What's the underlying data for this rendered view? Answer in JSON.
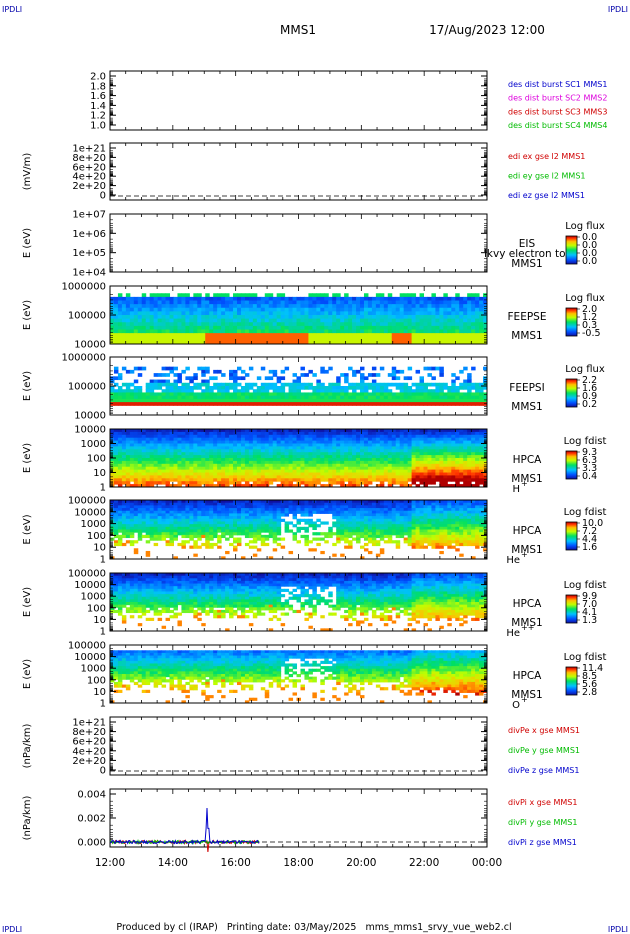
{
  "corner_labels": {
    "top_left": "IPDLI",
    "top_right": "IPDLI",
    "bottom_left": "IPDLI",
    "bottom_right": "IPDLI"
  },
  "header": {
    "spacecraft": "MMS1",
    "datetime": "17/Aug/2023 12:00"
  },
  "footer": {
    "text": "Produced by cl (IRAP)   Printing date: 03/May/2025   mms_mms1_srvy_vue_web2.cl"
  },
  "x_axis": {
    "ticks": [
      "12:00",
      "14:00",
      "16:00",
      "18:00",
      "20:00",
      "22:00",
      "00:00"
    ]
  },
  "colors": {
    "red": "#d00000",
    "green": "#00bb00",
    "blue": "#0000cc",
    "magenta": "#dd00dd"
  },
  "chart_data": [
    {
      "type": "line",
      "id": "p1",
      "ylabel": "",
      "yticks": [
        "2.0",
        "1.8",
        "1.6",
        "1.4",
        "1.2",
        "1.0"
      ],
      "series": [
        {
          "name": "des dist burst SC1 MMS1",
          "color": "#0000cc"
        },
        {
          "name": "des dist burst SC2 MMS2",
          "color": "#dd00dd"
        },
        {
          "name": "des dist burst SC3 MMS3",
          "color": "#d00000"
        },
        {
          "name": "des dist burst SC4 MMS4",
          "color": "#00bb00"
        }
      ]
    },
    {
      "type": "line",
      "id": "p2",
      "ylabel": "(mV/m)",
      "yticks": [
        "1e+21",
        "8e+20",
        "6e+20",
        "4e+20",
        "2e+20",
        "0"
      ],
      "series": [
        {
          "name": "edi ex gse l2 MMS1",
          "color": "#d00000"
        },
        {
          "name": "edi ey gse l2 MMS1",
          "color": "#00bb00"
        },
        {
          "name": "edi ez gse l2 MMS1",
          "color": "#0000cc"
        }
      ]
    },
    {
      "type": "heatmap",
      "id": "p3",
      "ylabel": "E (eV)",
      "yticks": [
        "1e+07",
        "1e+06",
        "1e+05",
        "1e+04"
      ],
      "labels": [
        "EIS",
        "MMS1"
      ],
      "overlay": "lkvy electron to",
      "colorbar": {
        "title": "Log flux",
        "ticks": [
          "0.0",
          "0.0",
          "0.0",
          "0.0"
        ]
      }
    },
    {
      "type": "heatmap",
      "id": "p4",
      "ylabel": "E (eV)",
      "yticks": [
        "1000000",
        "100000",
        "10000"
      ],
      "labels": [
        "FEEPSE",
        "MMS1"
      ],
      "colorbar": {
        "title": "Log flux",
        "ticks": [
          "2.0",
          "1.2",
          "0.3",
          "-0.5"
        ]
      }
    },
    {
      "type": "heatmap",
      "id": "p5",
      "ylabel": "E (eV)",
      "yticks": [
        "1000000",
        "100000",
        "10000"
      ],
      "labels": [
        "FEEPSI",
        "MMS1"
      ],
      "colorbar": {
        "title": "Log flux",
        "ticks": [
          "2.2",
          "1.6",
          "0.9",
          "0.2"
        ]
      }
    },
    {
      "type": "heatmap",
      "id": "p6",
      "ylabel": "E (eV)",
      "yticks": [
        "10000",
        "1000",
        "100",
        "10",
        "1"
      ],
      "labels": [
        "HPCA",
        "MMS1"
      ],
      "species": "H",
      "charge": "+",
      "colorbar": {
        "title": "Log fdist",
        "ticks": [
          "9.3",
          "6.3",
          "3.3",
          "0.4"
        ]
      }
    },
    {
      "type": "heatmap",
      "id": "p7",
      "ylabel": "E (eV)",
      "yticks": [
        "100000",
        "10000",
        "1000",
        "100",
        "10",
        "1"
      ],
      "labels": [
        "HPCA",
        "MMS1"
      ],
      "species": "He",
      "charge": "+",
      "colorbar": {
        "title": "Log fdist",
        "ticks": [
          "10.0",
          "7.2",
          "4.4",
          "1.6"
        ]
      }
    },
    {
      "type": "heatmap",
      "id": "p8",
      "ylabel": "E (eV)",
      "yticks": [
        "100000",
        "10000",
        "1000",
        "100",
        "10",
        "1"
      ],
      "labels": [
        "HPCA",
        "MMS1"
      ],
      "species": "He",
      "charge": "++",
      "colorbar": {
        "title": "Log fdist",
        "ticks": [
          "9.9",
          "7.0",
          "4.1",
          "1.3"
        ]
      }
    },
    {
      "type": "heatmap",
      "id": "p9",
      "ylabel": "E (eV)",
      "yticks": [
        "100000",
        "10000",
        "1000",
        "100",
        "10",
        "1"
      ],
      "labels": [
        "HPCA",
        "MMS1"
      ],
      "species": "O",
      "charge": "+",
      "colorbar": {
        "title": "Log fdist",
        "ticks": [
          "11.4",
          "8.5",
          "5.6",
          "2.8"
        ]
      }
    },
    {
      "type": "line",
      "id": "p10",
      "ylabel": "(nPa/km)",
      "yticks": [
        "1e+21",
        "8e+20",
        "6e+20",
        "4e+20",
        "2e+20",
        "0"
      ],
      "series": [
        {
          "name": "divPe x gse MMS1",
          "color": "#d00000"
        },
        {
          "name": "divPe y gse MMS1",
          "color": "#00bb00"
        },
        {
          "name": "divPe z gse MMS1",
          "color": "#0000cc"
        }
      ]
    },
    {
      "type": "line",
      "id": "p11",
      "ylabel": "(nPa/km)",
      "yticks": [
        "0.004",
        "0.002",
        "0.000"
      ],
      "series": [
        {
          "name": "divPi x gse MMS1",
          "color": "#d00000"
        },
        {
          "name": "divPi y gse MMS1",
          "color": "#00bb00"
        },
        {
          "name": "divPi z gse MMS1",
          "color": "#0000cc"
        }
      ]
    }
  ]
}
